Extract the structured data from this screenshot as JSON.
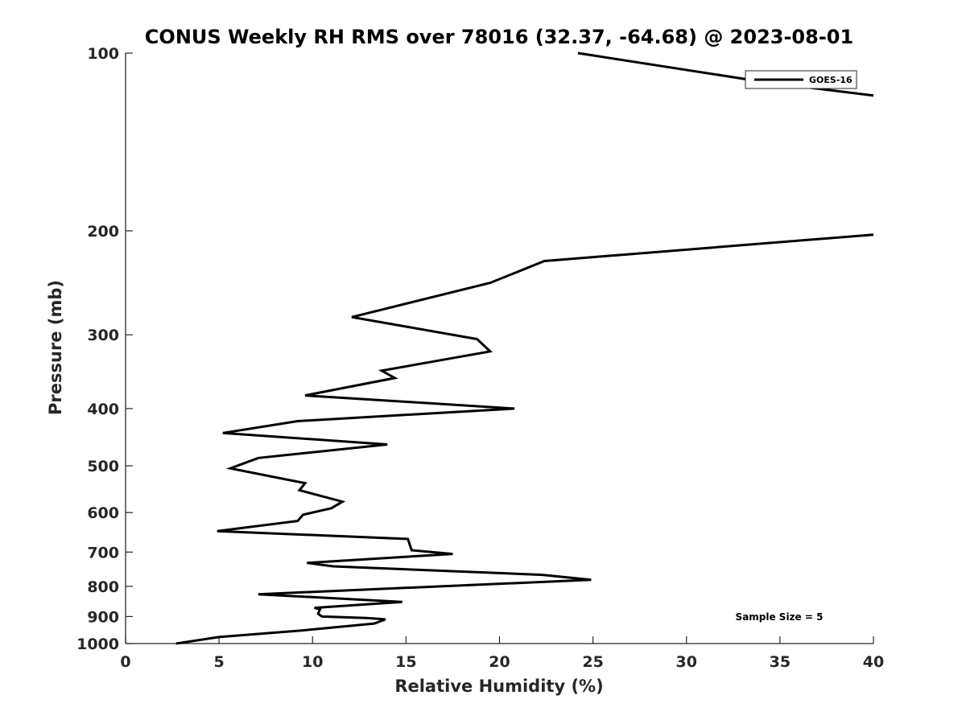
{
  "chart_data": {
    "type": "line",
    "title": "CONUS Weekly RH RMS over 78016 (32.37, -64.68) @ 2023-08-01",
    "xlabel": "Relative Humidity (%)",
    "ylabel": "Pressure (mb)",
    "xlim": [
      0,
      40
    ],
    "ylim": [
      100,
      1000
    ],
    "y_scale": "log",
    "y_reversed": true,
    "grid": false,
    "legend_position": "top-right",
    "x_ticks": [
      "0",
      "5",
      "10",
      "15",
      "20",
      "25",
      "30",
      "35",
      "40"
    ],
    "y_ticks": [
      "100",
      "200",
      "300",
      "400",
      "500",
      "600",
      "700",
      "800",
      "900",
      "1000"
    ],
    "annotation": "Sample Size = 5",
    "series": [
      {
        "name": "GOES-16",
        "color": "#000000",
        "points": [
          [
            2.7,
            1000
          ],
          [
            5.0,
            975
          ],
          [
            9.5,
            950
          ],
          [
            13.3,
            925
          ],
          [
            13.9,
            910
          ],
          [
            12.9,
            905
          ],
          [
            10.5,
            900
          ],
          [
            10.3,
            890
          ],
          [
            10.4,
            875
          ],
          [
            10.1,
            870
          ],
          [
            14.8,
            850
          ],
          [
            7.1,
            825
          ],
          [
            24.9,
            780
          ],
          [
            22.3,
            765
          ],
          [
            11.1,
            740
          ],
          [
            9.7,
            730
          ],
          [
            17.5,
            705
          ],
          [
            15.3,
            695
          ],
          [
            15.1,
            665
          ],
          [
            4.9,
            645
          ],
          [
            9.2,
            620
          ],
          [
            9.5,
            605
          ],
          [
            11.0,
            590
          ],
          [
            11.6,
            575
          ],
          [
            9.3,
            550
          ],
          [
            9.6,
            535
          ],
          [
            5.6,
            505
          ],
          [
            7.1,
            485
          ],
          [
            14.0,
            460
          ],
          [
            5.2,
            440
          ],
          [
            9.2,
            420
          ],
          [
            20.8,
            400
          ],
          [
            9.6,
            380
          ],
          [
            14.4,
            355
          ],
          [
            13.7,
            345
          ],
          [
            19.5,
            320
          ],
          [
            18.8,
            305
          ],
          [
            12.1,
            280
          ],
          [
            19.5,
            245
          ],
          [
            22.4,
            225
          ],
          [
            40.0,
            203
          ]
        ]
      },
      {
        "name": "GOES-16",
        "color": "#000000",
        "points": [
          [
            24.2,
            100
          ],
          [
            34.2,
            112
          ],
          [
            40.0,
            118
          ]
        ]
      }
    ]
  }
}
